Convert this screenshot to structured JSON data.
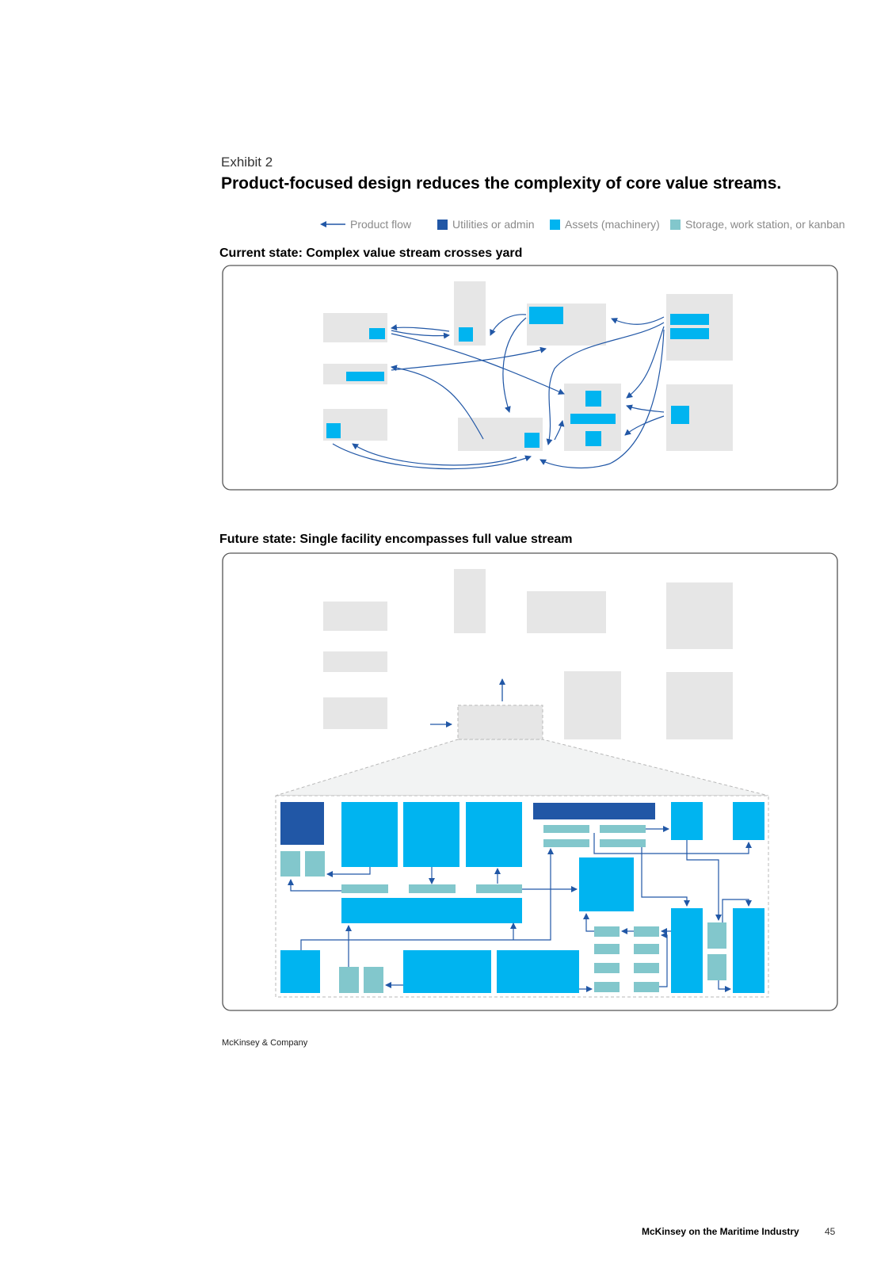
{
  "exhibit_label": "Exhibit 2",
  "title": "Product-focused design reduces the complexity of core value streams.",
  "legend": [
    {
      "label": "Product flow",
      "icon": "arrow-left-icon",
      "color": "#2157a6"
    },
    {
      "label": "Utilities or admin",
      "color": "#2157a6"
    },
    {
      "label": "Assets (machinery)",
      "color": "#00b4f0"
    },
    {
      "label": "Storage, work station, or kanban",
      "color": "#82c7cc"
    }
  ],
  "current_state": {
    "title": "Current state: Complex value stream crosses yard"
  },
  "future_state": {
    "title": "Future state: Single facility encompasses full value stream"
  },
  "source": "McKinsey & Company",
  "publication": "McKinsey on the Maritime Industry",
  "page_number": "45",
  "colors": {
    "building": "#e6e6e6",
    "utilities": "#2157a6",
    "assets": "#00b4f0",
    "storage": "#82c7cc",
    "flow": "#2157a6",
    "frame": "#555555"
  }
}
